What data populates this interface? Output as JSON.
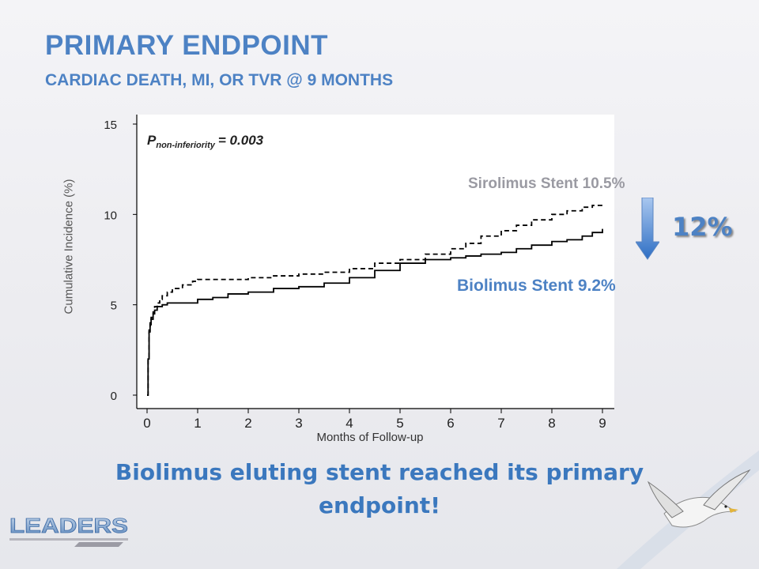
{
  "slide": {
    "title": "PRIMARY ENDPOINT",
    "subtitle": "CARDIAC DEATH, MI, OR TVR @ 9 MONTHS",
    "conclusion": "Biolimus eluting stent reached its primary endpoint!",
    "logo_text": "LEADERS"
  },
  "colors": {
    "accent": "#4d82c4",
    "sirolimus_label": "#9a9aa2",
    "curve": "#000000"
  },
  "chart_data": {
    "type": "line",
    "xlabel": "Months of Follow-up",
    "ylabel": "Cumulative Incidence (%)",
    "xlim": [
      0,
      9
    ],
    "ylim": [
      0,
      15
    ],
    "x_ticks": [
      0,
      1,
      2,
      3,
      4,
      5,
      6,
      7,
      8,
      9
    ],
    "y_ticks": [
      0,
      5,
      10,
      15
    ],
    "grid": false,
    "series": [
      {
        "name": "Sirolimus Stent",
        "style": "dashed",
        "x": [
          0,
          0.02,
          0.04,
          0.06,
          0.08,
          0.12,
          0.15,
          0.2,
          0.25,
          0.3,
          0.4,
          0.5,
          0.7,
          0.9,
          1.0,
          1.3,
          1.5,
          2.0,
          2.5,
          3.0,
          3.5,
          4.0,
          4.5,
          5.0,
          5.5,
          6.0,
          6.3,
          6.6,
          7.0,
          7.3,
          7.6,
          8.0,
          8.3,
          8.6,
          8.8,
          9.0
        ],
        "y": [
          0,
          2.0,
          3.5,
          4.0,
          4.3,
          4.6,
          4.9,
          5.1,
          5.3,
          5.5,
          5.7,
          5.9,
          6.1,
          6.3,
          6.4,
          6.4,
          6.4,
          6.5,
          6.6,
          6.7,
          6.8,
          7.0,
          7.3,
          7.5,
          7.8,
          8.1,
          8.4,
          8.8,
          9.1,
          9.4,
          9.7,
          10.0,
          10.2,
          10.4,
          10.5,
          10.5
        ]
      },
      {
        "name": "Biolimus Stent",
        "style": "solid",
        "x": [
          0,
          0.02,
          0.04,
          0.06,
          0.08,
          0.12,
          0.15,
          0.2,
          0.3,
          0.4,
          0.6,
          1.0,
          1.3,
          1.6,
          2.0,
          2.5,
          3.0,
          3.5,
          4.0,
          4.5,
          5.0,
          5.5,
          6.0,
          6.3,
          6.6,
          7.0,
          7.3,
          7.6,
          8.0,
          8.3,
          8.6,
          8.8,
          9.0
        ],
        "y": [
          0,
          2.0,
          3.6,
          3.9,
          4.2,
          4.5,
          4.7,
          4.9,
          5.0,
          5.1,
          5.1,
          5.3,
          5.4,
          5.6,
          5.7,
          5.9,
          6.0,
          6.2,
          6.5,
          6.9,
          7.3,
          7.5,
          7.6,
          7.7,
          7.8,
          7.9,
          8.1,
          8.3,
          8.5,
          8.6,
          8.8,
          9.0,
          9.2
        ]
      }
    ],
    "annotations": {
      "p_prefix": "P",
      "p_subscript": "non-inferiority",
      "p_value": "= 0.003",
      "sirolimus_label": "Sirolimus Stent 10.5%",
      "biolimus_label": "Biolimus Stent 9.2%",
      "relative_reduction": "12%"
    }
  }
}
